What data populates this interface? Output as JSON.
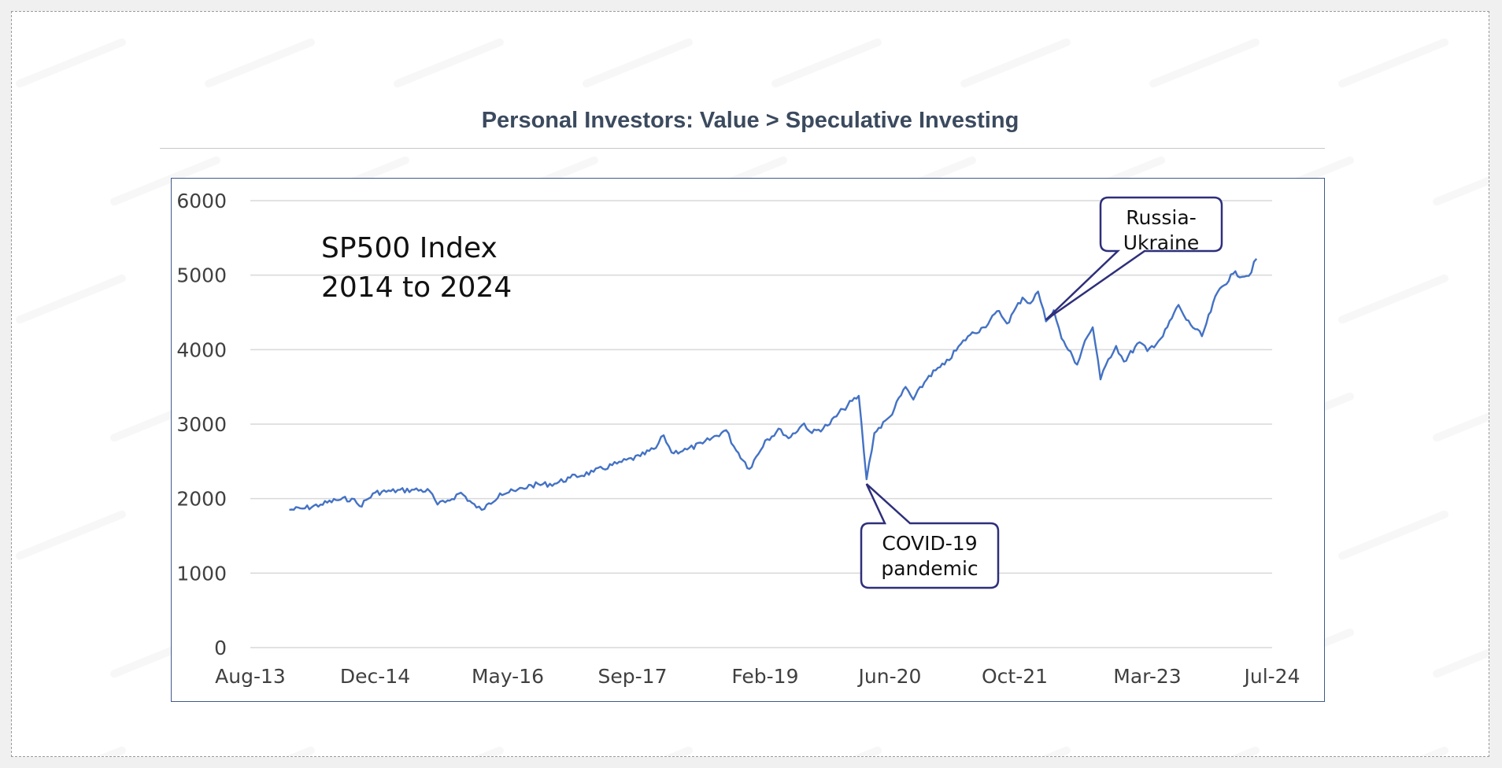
{
  "page": {
    "title": "Personal Investors: Value > Speculative Investing"
  },
  "colors": {
    "line": "#4472c4",
    "frame": "#3f5a8a",
    "grid": "#d9d9d9",
    "title": "#3b4a5e",
    "callout_border": "#2e2f7a"
  },
  "chart_data": {
    "type": "line",
    "title": "",
    "xlabel": "",
    "ylabel": "",
    "inner_text": [
      "SP500 Index",
      "2014 to 2024"
    ],
    "ylim": [
      0,
      6000
    ],
    "yticks": [
      0,
      1000,
      2000,
      3000,
      4000,
      5000,
      6000
    ],
    "xlim": [
      "2013-08",
      "2024-07"
    ],
    "xticks": [
      {
        "date": "2013-08",
        "label": "Aug-13"
      },
      {
        "date": "2014-12",
        "label": "Dec-14"
      },
      {
        "date": "2016-05",
        "label": "May-16"
      },
      {
        "date": "2017-09",
        "label": "Sep-17"
      },
      {
        "date": "2019-02",
        "label": "Feb-19"
      },
      {
        "date": "2020-06",
        "label": "Jun-20"
      },
      {
        "date": "2021-10",
        "label": "Oct-21"
      },
      {
        "date": "2023-03",
        "label": "Mar-23"
      },
      {
        "date": "2024-07",
        "label": "Jul-24"
      }
    ],
    "grid": "horizontal",
    "legend": "none",
    "series": [
      {
        "x": [
          "2014-01",
          "2014-03",
          "2014-05",
          "2014-07",
          "2014-09",
          "2014-10",
          "2014-12",
          "2015-02",
          "2015-05",
          "2015-07",
          "2015-08",
          "2015-09",
          "2015-11",
          "2016-01",
          "2016-02",
          "2016-04",
          "2016-06",
          "2016-08",
          "2016-11",
          "2017-01",
          "2017-04",
          "2017-07",
          "2017-10",
          "2017-12",
          "2018-01",
          "2018-02",
          "2018-04",
          "2018-06",
          "2018-09",
          "2018-10",
          "2018-12",
          "2019-02",
          "2019-04",
          "2019-05",
          "2019-07",
          "2019-08",
          "2019-10",
          "2019-12",
          "2020-02",
          "2020-03",
          "2020-04",
          "2020-06",
          "2020-08",
          "2020-09",
          "2020-11",
          "2021-01",
          "2021-04",
          "2021-06",
          "2021-08",
          "2021-09",
          "2021-11",
          "2021-12",
          "2022-01",
          "2022-02",
          "2022-03",
          "2022-04",
          "2022-06",
          "2022-07",
          "2022-08",
          "2022-09",
          "2022-10",
          "2022-11",
          "2022-12",
          "2023-02",
          "2023-03",
          "2023-05",
          "2023-07",
          "2023-08",
          "2023-10",
          "2023-12",
          "2024-02",
          "2024-04",
          "2024-05"
        ],
        "y": [
          1850,
          1870,
          1920,
          1980,
          2000,
          1900,
          2080,
          2100,
          2120,
          2100,
          1920,
          1950,
          2080,
          1880,
          1860,
          2070,
          2100,
          2180,
          2200,
          2280,
          2360,
          2470,
          2570,
          2680,
          2850,
          2620,
          2660,
          2740,
          2920,
          2700,
          2400,
          2780,
          2930,
          2810,
          3010,
          2880,
          2980,
          3200,
          3380,
          2260,
          2880,
          3100,
          3500,
          3330,
          3650,
          3800,
          4180,
          4300,
          4520,
          4350,
          4700,
          4620,
          4780,
          4380,
          4530,
          4150,
          3800,
          4120,
          4300,
          3600,
          3870,
          4050,
          3840,
          4100,
          3980,
          4180,
          4600,
          4400,
          4180,
          4770,
          5020,
          4990,
          5220
        ]
      }
    ],
    "annotations": [
      {
        "text": [
          "COVID-19",
          "pandemic"
        ],
        "at": "2020-03"
      },
      {
        "text": [
          "Russia-",
          "Ukraine"
        ],
        "at": "2022-02"
      }
    ]
  }
}
